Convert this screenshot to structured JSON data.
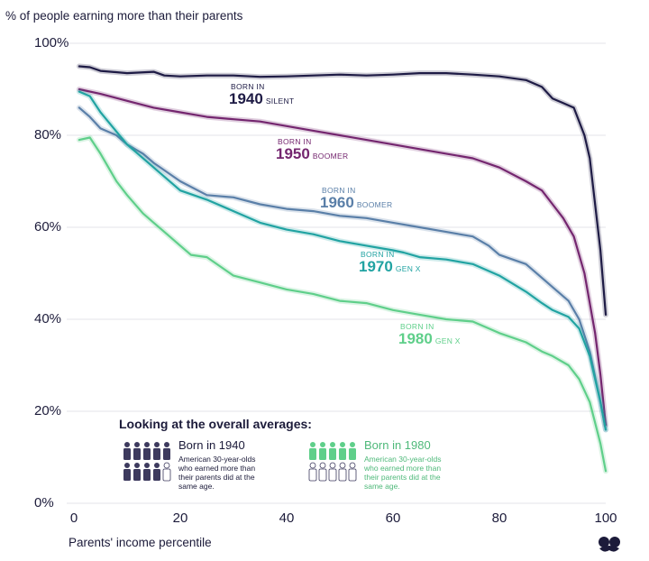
{
  "chart_data": {
    "type": "line",
    "ylabel": "% of people earning more than their parents",
    "xlabel": "Parents' income percentile",
    "xlim": [
      0,
      100
    ],
    "ylim": [
      0,
      100
    ],
    "x_ticks": [
      "0",
      "20",
      "40",
      "60",
      "80",
      "100"
    ],
    "y_ticks": [
      "0%",
      "20%",
      "40%",
      "60%",
      "80%",
      "100%"
    ],
    "series": [
      {
        "name": "1940",
        "born_label": "BORN IN",
        "year": "1940",
        "generation": "SILENT",
        "color": "#1e1b45",
        "x": [
          1,
          3,
          5,
          10,
          15,
          17,
          20,
          25,
          30,
          35,
          40,
          45,
          50,
          55,
          60,
          65,
          70,
          75,
          80,
          85,
          88,
          90,
          92,
          94,
          96,
          97,
          98,
          99,
          100
        ],
        "values": [
          95,
          94.8,
          94,
          93.5,
          93.8,
          93,
          92.8,
          93,
          93,
          92.7,
          92.8,
          93,
          93.2,
          93,
          93.2,
          93.5,
          93.5,
          93.2,
          92.8,
          92,
          90.5,
          88,
          87,
          86,
          80,
          75,
          65,
          55,
          41
        ]
      },
      {
        "name": "1950",
        "born_label": "BORN IN",
        "year": "1950",
        "generation": "BOOMER",
        "color": "#74266f",
        "x": [
          1,
          5,
          10,
          15,
          20,
          25,
          30,
          35,
          40,
          45,
          50,
          55,
          60,
          65,
          70,
          75,
          80,
          85,
          88,
          90,
          92,
          94,
          96,
          98,
          99,
          100
        ],
        "values": [
          90,
          89,
          87.5,
          86,
          85,
          84,
          83.5,
          83,
          82,
          81,
          80,
          79,
          78,
          77,
          76,
          75,
          73,
          70,
          68,
          65,
          62,
          58,
          50,
          37,
          28,
          17
        ]
      },
      {
        "name": "1960",
        "born_label": "BORN IN",
        "year": "1960",
        "generation": "BOOMER",
        "color": "#5a7fa8",
        "x": [
          1,
          3,
          5,
          8,
          10,
          13,
          15,
          20,
          25,
          30,
          35,
          40,
          45,
          50,
          55,
          60,
          65,
          70,
          75,
          78,
          80,
          85,
          88,
          90,
          93,
          95,
          97,
          99,
          100
        ],
        "values": [
          86,
          84,
          81.5,
          80,
          78,
          76,
          74,
          70,
          67,
          66.5,
          65,
          64,
          63.5,
          62.5,
          62,
          61,
          60,
          59,
          58,
          56,
          54,
          52,
          49,
          47,
          44,
          40,
          33,
          22,
          16
        ]
      },
      {
        "name": "1970",
        "born_label": "BORN IN",
        "year": "1970",
        "generation": "GEN X",
        "color": "#21a3a2",
        "x": [
          1,
          3,
          5,
          10,
          15,
          20,
          25,
          30,
          35,
          40,
          45,
          50,
          55,
          60,
          62,
          65,
          70,
          75,
          80,
          85,
          88,
          90,
          93,
          95,
          97,
          99,
          100
        ],
        "values": [
          89.5,
          88.5,
          85,
          78,
          73,
          68,
          66,
          63.5,
          61,
          59.5,
          58.5,
          57,
          56,
          55,
          54.5,
          53.5,
          53,
          52,
          49.5,
          46,
          43.5,
          42,
          40.5,
          38,
          32,
          22,
          16
        ]
      },
      {
        "name": "1980",
        "born_label": "BORN IN",
        "year": "1980",
        "generation": "GEN X",
        "color": "#5fcf8a",
        "x": [
          1,
          3,
          5,
          8,
          10,
          13,
          15,
          18,
          20,
          22,
          25,
          30,
          35,
          40,
          45,
          50,
          55,
          60,
          65,
          70,
          75,
          80,
          85,
          88,
          90,
          93,
          95,
          97,
          99,
          100
        ],
        "values": [
          79,
          79.5,
          76,
          70,
          67,
          63,
          61,
          58,
          56,
          54,
          53.5,
          49.5,
          48,
          46.5,
          45.5,
          44,
          43.5,
          42,
          41,
          40,
          39.5,
          37,
          35,
          33,
          32,
          30,
          27,
          22,
          13,
          7
        ]
      }
    ]
  },
  "averages": {
    "title": "Looking at the overall averages:",
    "items": [
      {
        "heading": "Born in 1940",
        "description": "American 30-year-olds who earned more than their parents did at the same age.",
        "share_filled": 0.92,
        "color": "#3d3a5e",
        "text_color": "#1c1b3a"
      },
      {
        "heading": "Born in 1980",
        "description": "American 30-year-olds who earned more than their parents did at the same age.",
        "share_filled": 0.5,
        "color": "#5fcf8a",
        "text_color": "#4fb97a"
      }
    ]
  }
}
